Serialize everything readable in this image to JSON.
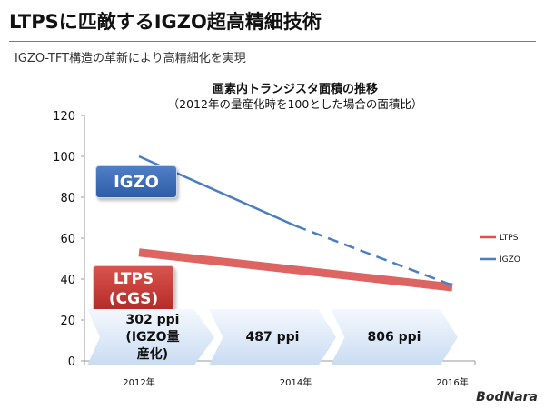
{
  "slide": {
    "title": "LTPSに匹敵するIGZO超高精細技術",
    "subtitle": "IGZO-TFT構造の革新により高精細化を実現",
    "watermark": "BodNara"
  },
  "chart_data": {
    "type": "line",
    "title": "画素内トランジスタ面積の推移",
    "subtitle": "（2012年の量産化時を100とした場合の面積比）",
    "xlabel": "",
    "ylabel": "",
    "categories": [
      "2012年",
      "2014年",
      "2016年"
    ],
    "x_range": [
      2012,
      2016
    ],
    "yticks": [
      0,
      20,
      40,
      60,
      80,
      100,
      120
    ],
    "ylim": [
      0,
      120
    ],
    "grid": false,
    "legend_placement": "right",
    "series": [
      {
        "name": "LTPS",
        "color": "#d9534f",
        "style": "solid-thick",
        "points": [
          [
            2012,
            53
          ],
          [
            2016,
            36
          ]
        ]
      },
      {
        "name": "IGZO",
        "color": "#4a7ec0",
        "style": "solid-then-dashed",
        "points": [
          [
            2012,
            100
          ],
          [
            2014,
            66
          ],
          [
            2016,
            37
          ]
        ],
        "dashed_from_index": 1
      }
    ],
    "series_labels": {
      "igzo": "IGZO",
      "ltps_line1": "LTPS",
      "ltps_line2": "(CGS)"
    },
    "ppi_arrows": [
      {
        "value": "302 ppi",
        "note_line1": "(IGZO量",
        "note_line2": "産化)"
      },
      {
        "value": "487 ppi"
      },
      {
        "value": "806 ppi"
      }
    ]
  }
}
